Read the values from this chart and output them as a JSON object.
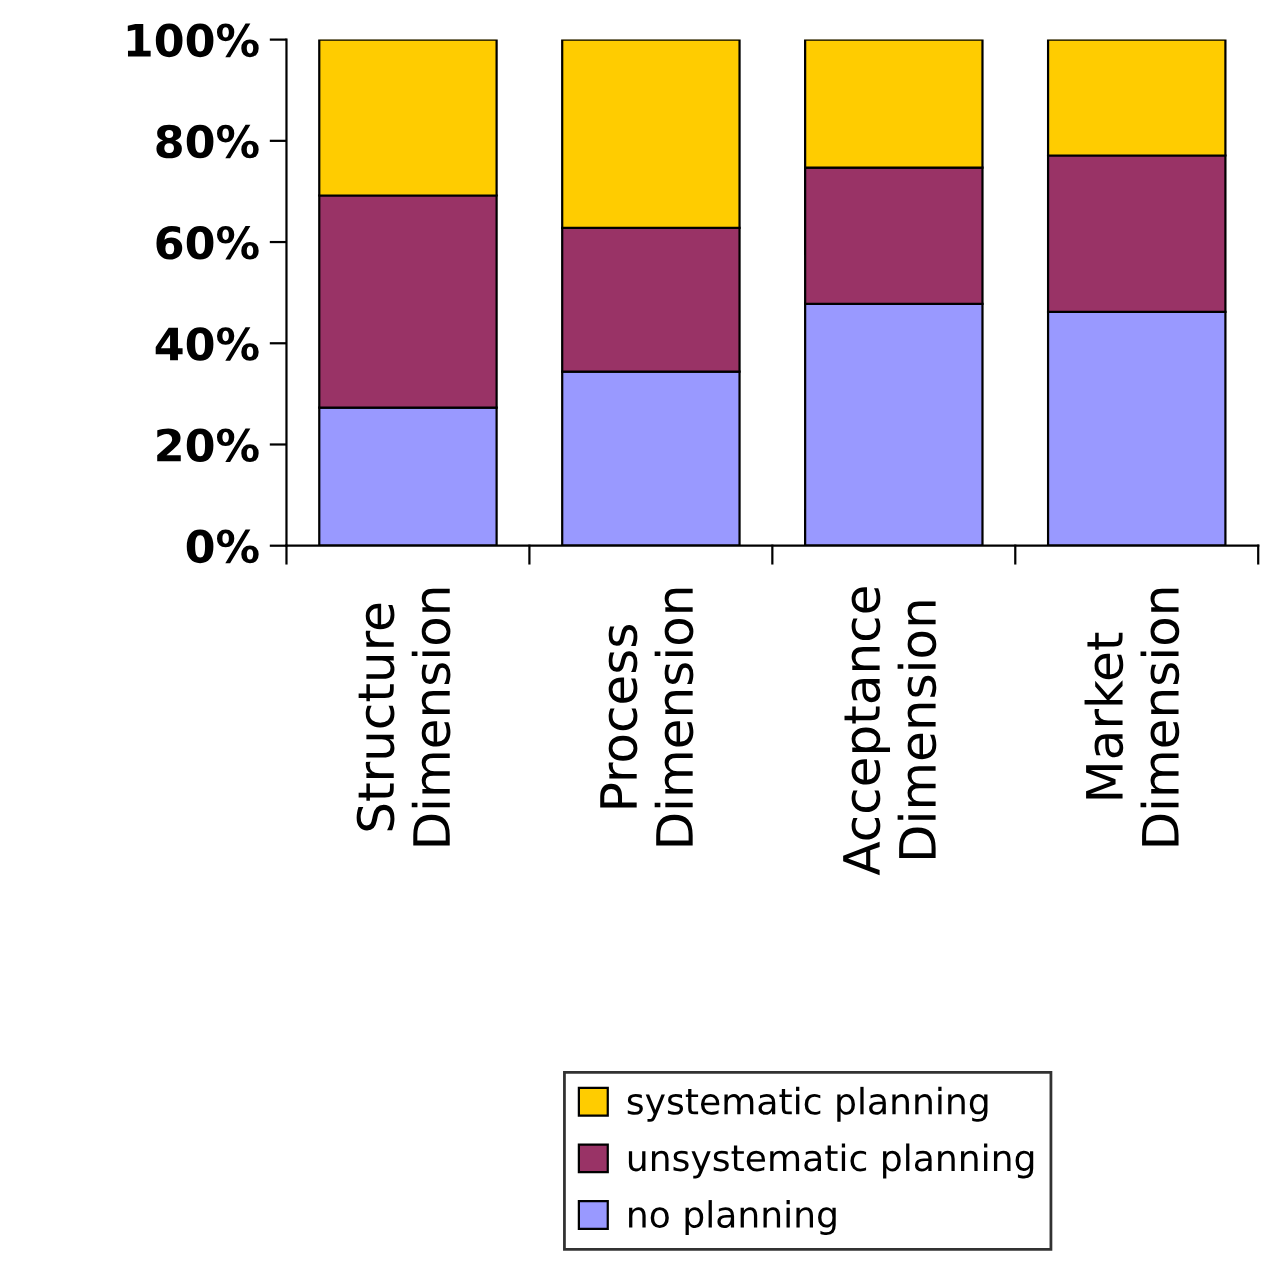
{
  "chart_data": {
    "type": "bar",
    "stacked": true,
    "categories": [
      "Structure\nDimension",
      "Process\nDimension",
      "Acceptance\nDimension",
      "Market\nDimension"
    ],
    "series": [
      {
        "name": "no planning",
        "color": "#9999ff",
        "values": [
          27.3,
          34.4,
          47.8,
          46.2
        ]
      },
      {
        "name": "unsystematic planning",
        "color": "#993366",
        "values": [
          41.9,
          28.4,
          26.9,
          30.9
        ]
      },
      {
        "name": "systematic planning",
        "color": "#ffcc00",
        "values": [
          30.8,
          37.2,
          25.3,
          22.9
        ]
      }
    ],
    "ylim": [
      0,
      100
    ],
    "yticks": [
      {
        "value": 0,
        "label": "0%"
      },
      {
        "value": 20,
        "label": "20%"
      },
      {
        "value": 40,
        "label": "40%"
      },
      {
        "value": 60,
        "label": "60%"
      },
      {
        "value": 80,
        "label": "80%"
      },
      {
        "value": 100,
        "label": "100%"
      }
    ],
    "grid": false,
    "legend": "bottom"
  }
}
